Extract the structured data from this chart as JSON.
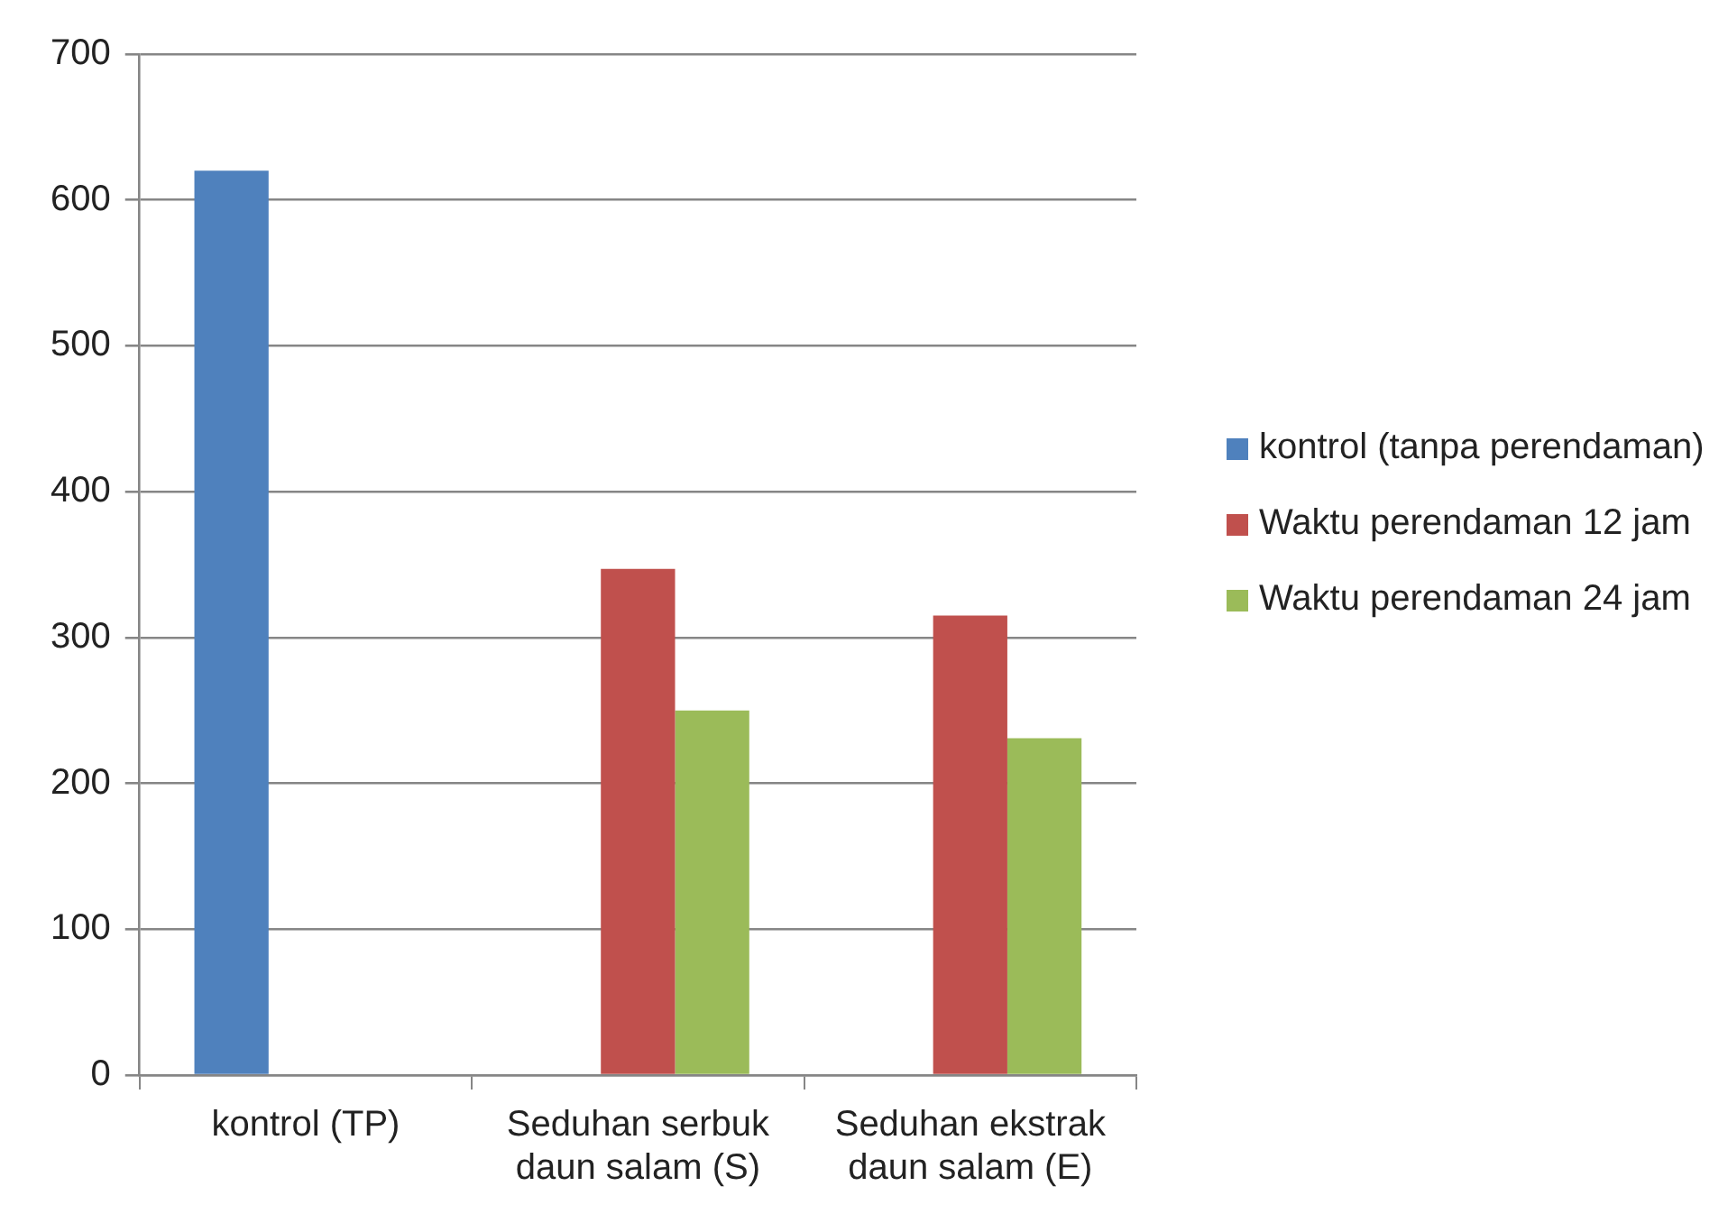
{
  "chart_data": {
    "type": "bar",
    "categories": [
      "kontrol (TP)",
      "Seduhan serbuk daun salam (S)",
      "Seduhan ekstrak daun salam (E)"
    ],
    "series": [
      {
        "name": "kontrol (tanpa perendaman)",
        "color": "#4f81bd",
        "values": [
          620,
          null,
          null
        ]
      },
      {
        "name": "Waktu perendaman 12 jam",
        "color": "#c0504d",
        "values": [
          null,
          347,
          315
        ]
      },
      {
        "name": "Waktu perendaman 24 jam",
        "color": "#9bbb59",
        "values": [
          null,
          250,
          231
        ]
      }
    ],
    "ylim": [
      0,
      700
    ],
    "yticks": [
      0,
      100,
      200,
      300,
      400,
      500,
      600,
      700
    ],
    "grid": "y",
    "legend": "right"
  }
}
